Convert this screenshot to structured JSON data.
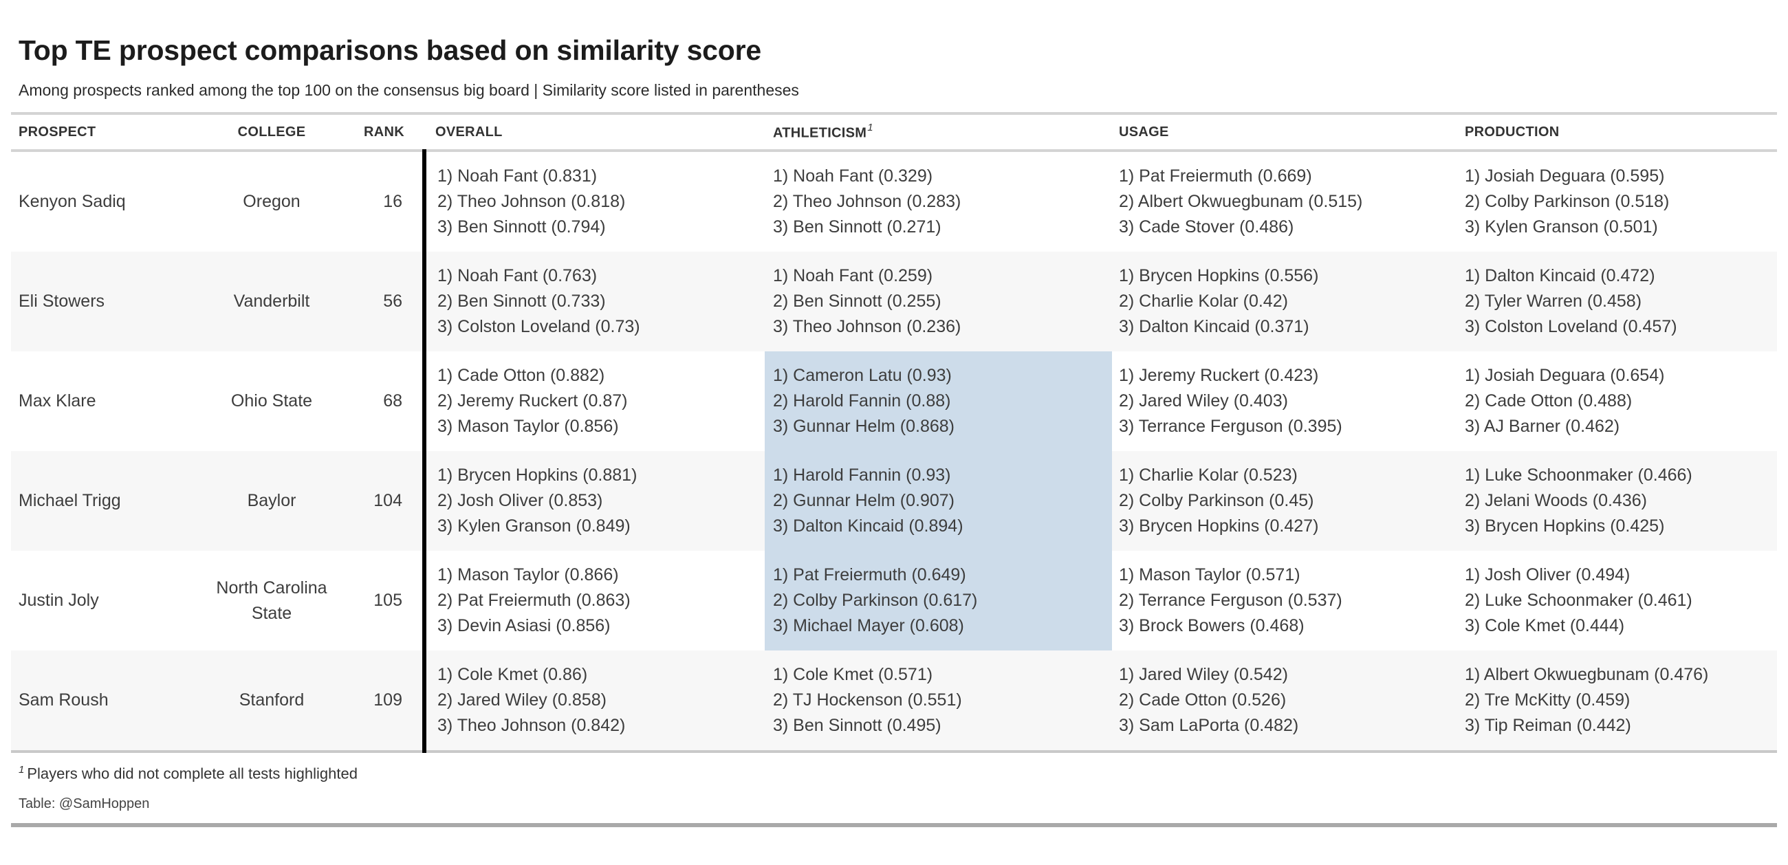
{
  "colors": {
    "highlight": "#cddcea",
    "row_alt": "#f7f7f7",
    "divider": "#000000",
    "rule_light": "#d4d4d4",
    "rule_mid": "#c9c9c9",
    "rule_dark": "#a9a9a9"
  },
  "chart_data": {
    "type": "table",
    "title": "Top TE prospect comparisons based on similarity score",
    "subtitle": "Among prospects ranked among the top 100 on the consensus big board | Similarity score listed in parentheses",
    "columns": [
      "Prospect",
      "College",
      "Rank",
      "Overall",
      "Athleticism",
      "Usage",
      "Production"
    ],
    "footnote_marker": "1",
    "footnote": "Players who did not complete all tests highlighted",
    "credit": "Table: @SamHoppen",
    "rows": [
      {
        "prospect": "Kenyon Sadiq",
        "college": "Oregon",
        "rank": "16",
        "overall": [
          "1) Noah Fant (0.831)",
          "2) Theo Johnson (0.818)",
          "3) Ben Sinnott (0.794)"
        ],
        "athleticism": [
          "1) Noah Fant (0.329)",
          "2) Theo Johnson (0.283)",
          "3) Ben Sinnott (0.271)"
        ],
        "athleticism_highlight": false,
        "usage": [
          "1) Pat Freiermuth (0.669)",
          "2) Albert Okwuegbunam (0.515)",
          "3) Cade Stover (0.486)"
        ],
        "production": [
          "1) Josiah Deguara (0.595)",
          "2) Colby Parkinson (0.518)",
          "3) Kylen Granson (0.501)"
        ]
      },
      {
        "prospect": "Eli Stowers",
        "college": "Vanderbilt",
        "rank": "56",
        "overall": [
          "1) Noah Fant (0.763)",
          "2) Ben Sinnott (0.733)",
          "3) Colston Loveland (0.73)"
        ],
        "athleticism": [
          "1) Noah Fant (0.259)",
          "2) Ben Sinnott (0.255)",
          "3) Theo Johnson (0.236)"
        ],
        "athleticism_highlight": false,
        "usage": [
          "1) Brycen Hopkins (0.556)",
          "2) Charlie Kolar (0.42)",
          "3) Dalton Kincaid (0.371)"
        ],
        "production": [
          "1) Dalton Kincaid (0.472)",
          "2) Tyler Warren (0.458)",
          "3) Colston Loveland (0.457)"
        ]
      },
      {
        "prospect": "Max Klare",
        "college": "Ohio State",
        "rank": "68",
        "overall": [
          "1) Cade Otton (0.882)",
          "2) Jeremy Ruckert (0.87)",
          "3) Mason Taylor (0.856)"
        ],
        "athleticism": [
          "1) Cameron Latu (0.93)",
          "2) Harold Fannin (0.88)",
          "3) Gunnar Helm (0.868)"
        ],
        "athleticism_highlight": true,
        "usage": [
          "1) Jeremy Ruckert (0.423)",
          "2) Jared Wiley (0.403)",
          "3) Terrance Ferguson (0.395)"
        ],
        "production": [
          "1) Josiah Deguara (0.654)",
          "2) Cade Otton (0.488)",
          "3) AJ Barner (0.462)"
        ]
      },
      {
        "prospect": "Michael Trigg",
        "college": "Baylor",
        "rank": "104",
        "overall": [
          "1) Brycen Hopkins (0.881)",
          "2) Josh Oliver (0.853)",
          "3) Kylen Granson (0.849)"
        ],
        "athleticism": [
          "1) Harold Fannin (0.93)",
          "2) Gunnar Helm (0.907)",
          "3) Dalton Kincaid (0.894)"
        ],
        "athleticism_highlight": true,
        "usage": [
          "1) Charlie Kolar (0.523)",
          "2) Colby Parkinson (0.45)",
          "3) Brycen Hopkins (0.427)"
        ],
        "production": [
          "1) Luke Schoonmaker (0.466)",
          "2) Jelani Woods (0.436)",
          "3) Brycen Hopkins (0.425)"
        ]
      },
      {
        "prospect": "Justin Joly",
        "college": "North Carolina State",
        "rank": "105",
        "overall": [
          "1) Mason Taylor (0.866)",
          "2) Pat Freiermuth (0.863)",
          "3) Devin Asiasi (0.856)"
        ],
        "athleticism": [
          "1) Pat Freiermuth (0.649)",
          "2) Colby Parkinson (0.617)",
          "3) Michael Mayer (0.608)"
        ],
        "athleticism_highlight": true,
        "usage": [
          "1) Mason Taylor (0.571)",
          "2) Terrance Ferguson (0.537)",
          "3) Brock Bowers (0.468)"
        ],
        "production": [
          "1) Josh Oliver (0.494)",
          "2) Luke Schoonmaker (0.461)",
          "3) Cole Kmet (0.444)"
        ]
      },
      {
        "prospect": "Sam Roush",
        "college": "Stanford",
        "rank": "109",
        "overall": [
          "1) Cole Kmet (0.86)",
          "2) Jared Wiley (0.858)",
          "3) Theo Johnson (0.842)"
        ],
        "athleticism": [
          "1) Cole Kmet (0.571)",
          "2) TJ Hockenson (0.551)",
          "3) Ben Sinnott (0.495)"
        ],
        "athleticism_highlight": false,
        "usage": [
          "1) Jared Wiley (0.542)",
          "2) Cade Otton (0.526)",
          "3) Sam LaPorta (0.482)"
        ],
        "production": [
          "1) Albert Okwuegbunam (0.476)",
          "2) Tre McKitty (0.459)",
          "3) Tip Reiman (0.442)"
        ]
      }
    ]
  }
}
